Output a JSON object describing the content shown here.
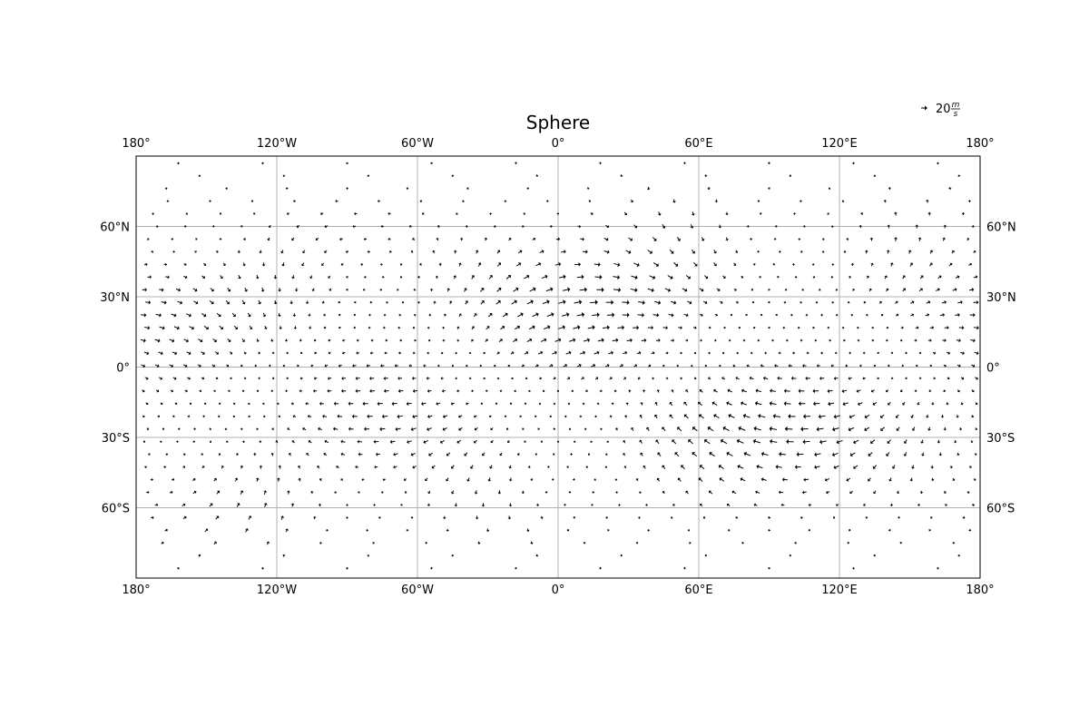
{
  "chart_data": {
    "type": "quiver",
    "title": "Sphere",
    "projection": "PlateCarree",
    "xlim": [
      -180,
      180
    ],
    "ylim": [
      -90,
      90
    ],
    "grid": true,
    "x_ticks": [
      {
        "value": -180,
        "label": "180°"
      },
      {
        "value": -120,
        "label": "120°W"
      },
      {
        "value": -60,
        "label": "60°W"
      },
      {
        "value": 0,
        "label": "0°"
      },
      {
        "value": 60,
        "label": "60°E"
      },
      {
        "value": 120,
        "label": "120°E"
      },
      {
        "value": 180,
        "label": "180°"
      }
    ],
    "y_ticks": [
      {
        "value": 60,
        "label": "60°N"
      },
      {
        "value": 30,
        "label": "30°N"
      },
      {
        "value": 0,
        "label": "0°"
      },
      {
        "value": -30,
        "label": "30°S"
      },
      {
        "value": -60,
        "label": "60°S"
      }
    ],
    "quiver_key": {
      "value": 20,
      "label": "20",
      "unit_num": "m",
      "unit_den": "s"
    },
    "vector_color": "#000000",
    "grid_color": "#b0b0b0",
    "field": {
      "description_only_for_generation": "",
      "lon_start": -177,
      "lon_step": 6,
      "lon_count": 60,
      "lat_start": 87,
      "lat_step": -5.4,
      "lat_count": 33,
      "max_speed": 20
    }
  }
}
